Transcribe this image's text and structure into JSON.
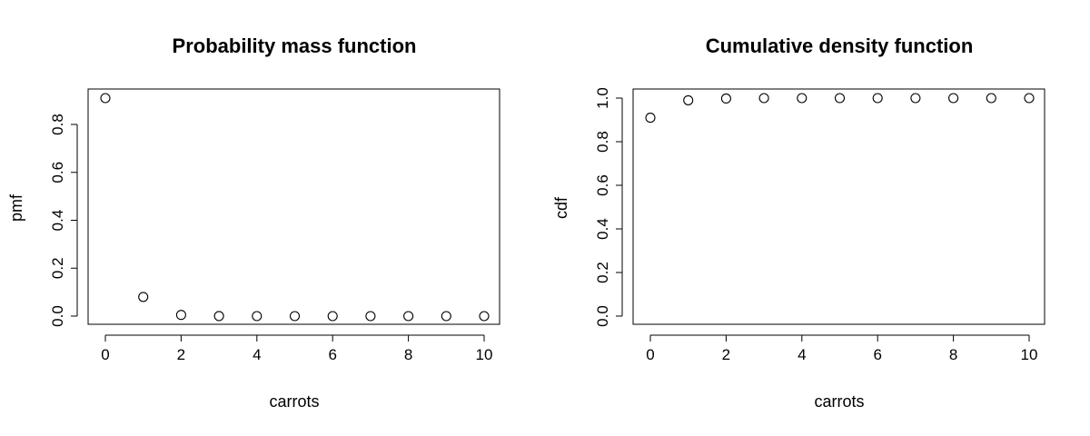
{
  "chart_data": [
    {
      "type": "scatter",
      "title": "Probability mass function",
      "xlabel": "carrots",
      "ylabel": "pmf",
      "xlim": [
        0,
        10
      ],
      "ylim": [
        0,
        0.91
      ],
      "x_ticks": [
        0,
        2,
        4,
        6,
        8,
        10
      ],
      "y_ticks": [
        0.0,
        0.2,
        0.4,
        0.6,
        0.8
      ],
      "y_tick_labels": [
        "0.0",
        "0.2",
        "0.4",
        "0.6",
        "0.8"
      ],
      "grid": false,
      "points": {
        "x": [
          0,
          1,
          2,
          3,
          4,
          5,
          6,
          7,
          8,
          9,
          10
        ],
        "y": [
          0.91,
          0.08,
          0.005,
          0.0003,
          0,
          0,
          0,
          0,
          0,
          0,
          0
        ]
      }
    },
    {
      "type": "scatter",
      "title": "Cumulative density function",
      "xlabel": "carrots",
      "ylabel": "cdf",
      "xlim": [
        0,
        10
      ],
      "ylim": [
        0,
        1.0
      ],
      "x_ticks": [
        0,
        2,
        4,
        6,
        8,
        10
      ],
      "y_ticks": [
        0.0,
        0.2,
        0.4,
        0.6,
        0.8,
        1.0
      ],
      "y_tick_labels": [
        "0.0",
        "0.2",
        "0.4",
        "0.6",
        "0.8",
        "1.0"
      ],
      "grid": false,
      "points": {
        "x": [
          0,
          1,
          2,
          3,
          4,
          5,
          6,
          7,
          8,
          9,
          10
        ],
        "y": [
          0.91,
          0.99,
          0.998,
          1.0,
          1.0,
          1.0,
          1.0,
          1.0,
          1.0,
          1.0,
          1.0
        ]
      }
    }
  ]
}
